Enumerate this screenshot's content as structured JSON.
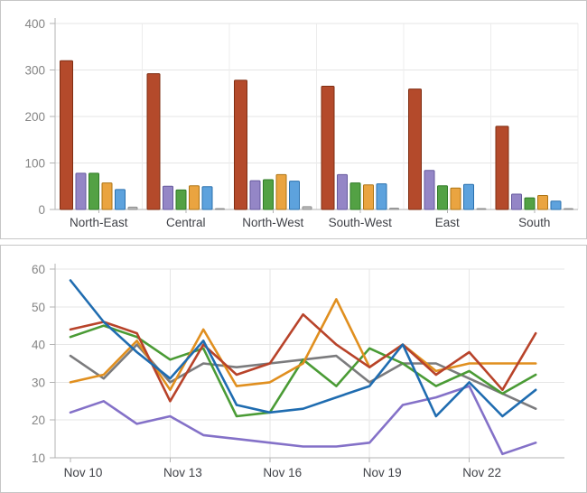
{
  "styles": {
    "background": "#ffffff",
    "panel_border": "#c6c6c6",
    "grid_color": "#e6e6e6",
    "group_separator_color": "#ececec",
    "axis_color": "#b3b3b3",
    "tick_label_color": "#858585",
    "category_label_color": "#3f4147"
  },
  "chart_data": [
    {
      "type": "bar",
      "title": "",
      "xlabel": "",
      "ylabel": "",
      "ylim": [
        0,
        400
      ],
      "yticks": [
        0,
        100,
        200,
        300,
        400
      ],
      "grid": true,
      "legend": "none",
      "categories": [
        "North-East",
        "Central",
        "North-West",
        "South-West",
        "East",
        "South"
      ],
      "series": [
        {
          "name": "red",
          "color": "#b44a2b",
          "border": "#7f2d12",
          "values": [
            320,
            292,
            278,
            265,
            259,
            179
          ]
        },
        {
          "name": "purple",
          "color": "#9486c6",
          "border": "#665a9e",
          "values": [
            78,
            50,
            62,
            75,
            84,
            33
          ]
        },
        {
          "name": "green",
          "color": "#53a144",
          "border": "#2f7a26",
          "values": [
            78,
            42,
            64,
            57,
            51,
            25
          ]
        },
        {
          "name": "orange",
          "color": "#eaa440",
          "border": "#ad7414",
          "values": [
            57,
            51,
            75,
            53,
            46,
            30
          ]
        },
        {
          "name": "blue",
          "color": "#5da2dd",
          "border": "#2a70ad",
          "values": [
            43,
            49,
            61,
            55,
            54,
            18
          ]
        },
        {
          "name": "gray",
          "color": "#b9b9b9",
          "border": "#8f8f8f",
          "values": [
            5,
            2,
            6,
            3,
            2,
            2
          ]
        }
      ]
    },
    {
      "type": "line",
      "title": "",
      "xlabel": "",
      "ylabel": "",
      "ylim": [
        10,
        60
      ],
      "yticks": [
        10,
        20,
        30,
        40,
        50,
        60
      ],
      "grid": true,
      "legend": "none",
      "n_points": 15,
      "x_tick_indices": [
        0,
        3,
        6,
        9,
        12
      ],
      "x_tick_labels": [
        "Nov 10",
        "Nov 13",
        "Nov 16",
        "Nov 19",
        "Nov 22"
      ],
      "series": [
        {
          "name": "gray",
          "color": "#7b7b7d",
          "values": [
            37,
            31,
            40,
            30,
            35,
            34,
            35,
            36,
            37,
            30,
            35,
            35,
            31,
            27,
            23
          ]
        },
        {
          "name": "purple",
          "color": "#8471c8",
          "values": [
            22,
            25,
            19,
            21,
            16,
            15,
            14,
            13,
            13,
            14,
            24,
            26,
            29,
            11,
            14
          ]
        },
        {
          "name": "green",
          "color": "#4a9b35",
          "values": [
            42,
            45,
            42,
            36,
            39,
            21,
            22,
            36,
            29,
            39,
            35,
            29,
            33,
            27,
            32
          ]
        },
        {
          "name": "orange",
          "color": "#e08f1f",
          "values": [
            30,
            32,
            41,
            28,
            44,
            29,
            30,
            35,
            52,
            34,
            40,
            33,
            35,
            35,
            35
          ]
        },
        {
          "name": "red",
          "color": "#b8432a",
          "values": [
            44,
            46,
            43,
            25,
            40,
            32,
            35,
            48,
            40,
            34,
            40,
            32,
            38,
            28,
            43
          ]
        },
        {
          "name": "blue",
          "color": "#1f6cb0",
          "values": [
            57,
            46,
            38,
            31,
            41,
            24,
            22,
            23,
            26,
            29,
            40,
            21,
            30,
            21,
            28
          ]
        }
      ]
    }
  ]
}
